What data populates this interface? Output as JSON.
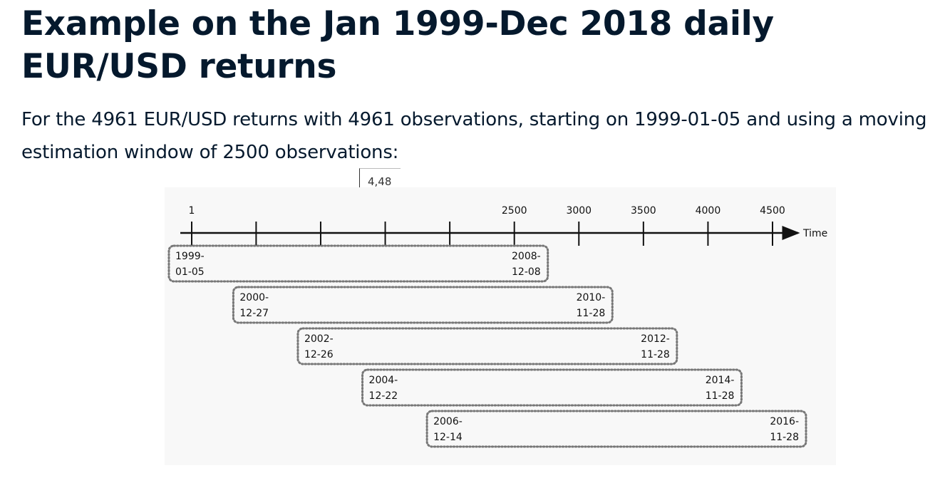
{
  "title": "Example on the Jan 1999-Dec 2018 daily EUR/USD returns",
  "subtitle": "For the 4961 EUR/USD returns with 4961 observations, starting on 1999-01-05 and using a moving estimation window of 2500 observations:",
  "callout_label": "4,48",
  "timeline": {
    "axis_label": "Time",
    "ticks": [
      {
        "value": 1,
        "label": "1"
      },
      {
        "value": 500,
        "label": ""
      },
      {
        "value": 1000,
        "label": ""
      },
      {
        "value": 1500,
        "label": ""
      },
      {
        "value": 2000,
        "label": ""
      },
      {
        "value": 2500,
        "label": "2500"
      },
      {
        "value": 3000,
        "label": "3000"
      },
      {
        "value": 3500,
        "label": "3500"
      },
      {
        "value": 4000,
        "label": "4000"
      },
      {
        "value": 4500,
        "label": "4500"
      }
    ],
    "windows": [
      {
        "start_obs": 1,
        "end_obs": 2500,
        "start_lines": [
          "1999-",
          "01-05"
        ],
        "end_lines": [
          "2008-",
          "12-08"
        ]
      },
      {
        "start_obs": 500,
        "end_obs": 3000,
        "start_lines": [
          "2000-",
          "12-27"
        ],
        "end_lines": [
          "2010-",
          "11-28"
        ]
      },
      {
        "start_obs": 1000,
        "end_obs": 3500,
        "start_lines": [
          "2002-",
          "12-26"
        ],
        "end_lines": [
          "2012-",
          "11-28"
        ]
      },
      {
        "start_obs": 1500,
        "end_obs": 4000,
        "start_lines": [
          "2004-",
          "12-22"
        ],
        "end_lines": [
          "2014-",
          "11-28"
        ]
      },
      {
        "start_obs": 2000,
        "end_obs": 4500,
        "start_lines": [
          "2006-",
          "12-14"
        ],
        "end_lines": [
          "2016-",
          "11-28"
        ]
      }
    ]
  },
  "colors": {
    "text": "#05192d",
    "figure_bg": "#f8f8f8",
    "dotted_border": "#777777"
  }
}
